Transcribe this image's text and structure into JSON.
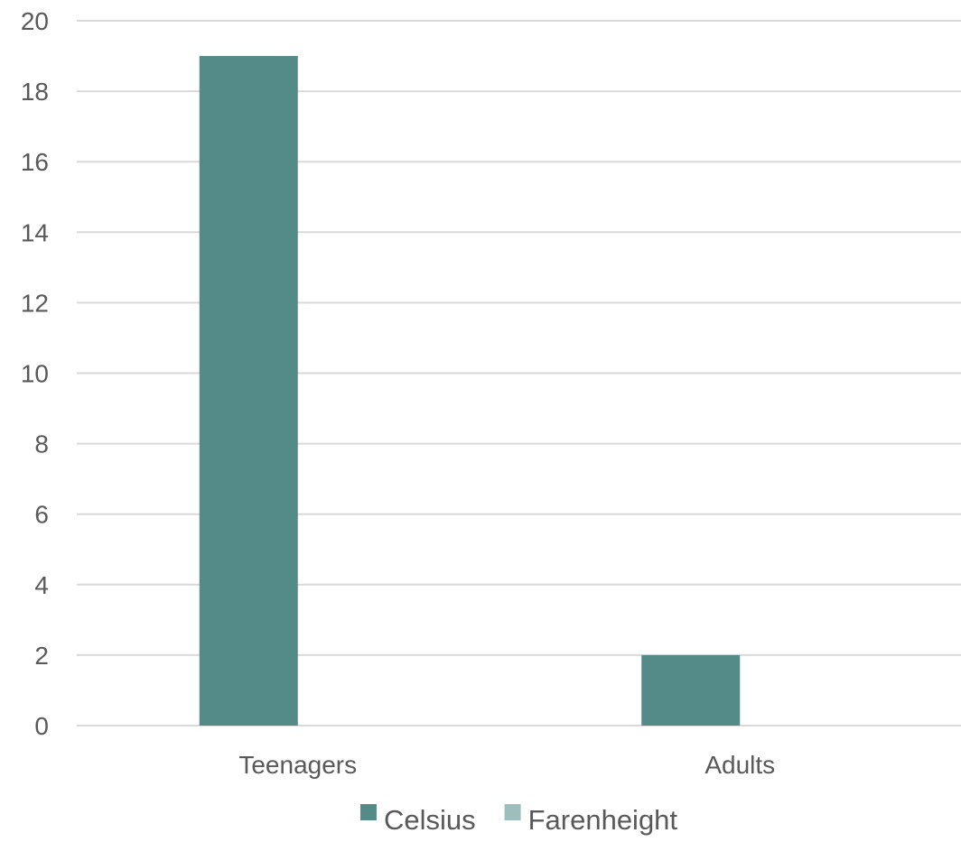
{
  "chart_data": {
    "type": "bar",
    "categories": [
      "Teenagers",
      "Adults"
    ],
    "series": [
      {
        "name": "Celsius",
        "values": [
          19,
          2
        ],
        "color": "#548a87"
      },
      {
        "name": "Farenheight",
        "values": [
          0,
          0
        ],
        "color": "#9ebebd"
      }
    ],
    "title": "",
    "xlabel": "",
    "ylabel": "",
    "ylim": [
      0,
      20
    ],
    "yticks": [
      0,
      2,
      4,
      6,
      8,
      10,
      12,
      14,
      16,
      18,
      20
    ],
    "grid": true,
    "legend": "bottom"
  }
}
